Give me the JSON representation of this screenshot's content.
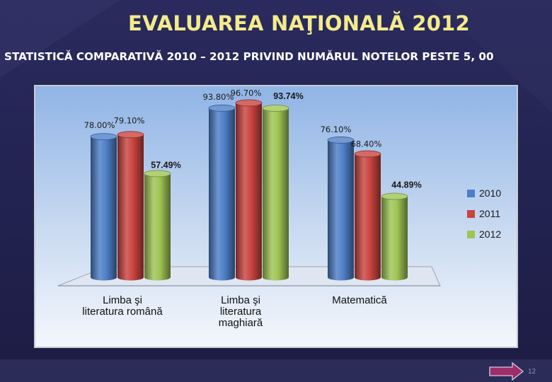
{
  "slide": {
    "title": "EVALUAREA NAŢIONALĂ 2012",
    "subtitle": "STATISTICĂ COMPARATIVĂ 2010 – 2012 PRIVIND NUMĂRUL NOTELOR PESTE  5, 00",
    "page_number": "12"
  },
  "colors": {
    "background": "#23234f",
    "title": "#f3eb8a",
    "next_button": "#9b2e6a"
  },
  "chart_data": {
    "type": "bar",
    "style": "3d-cylinder",
    "title": "",
    "xlabel": "",
    "ylabel": "",
    "categories": [
      [
        "Limba şi",
        "literatura română"
      ],
      [
        "Limba şi",
        "literatura",
        "maghiară"
      ],
      [
        "Matematică"
      ]
    ],
    "series": [
      {
        "name": "2010",
        "color": "#4d7fc8",
        "values": [
          78.0,
          93.8,
          76.1
        ],
        "labels": [
          "78.00%",
          "93.80%",
          "76.10%"
        ]
      },
      {
        "name": "2011",
        "color": "#c9443f",
        "values": [
          79.1,
          96.7,
          68.4
        ],
        "labels": [
          "79.10%",
          "96.70%",
          "68.40%"
        ]
      },
      {
        "name": "2012",
        "color": "#9fc454",
        "values": [
          57.49,
          93.74,
          44.89
        ],
        "labels": [
          "57.49%",
          "93.74%",
          "44.89%"
        ]
      }
    ],
    "ylim": [
      0,
      100
    ],
    "grid": false,
    "legend_position": "right"
  }
}
